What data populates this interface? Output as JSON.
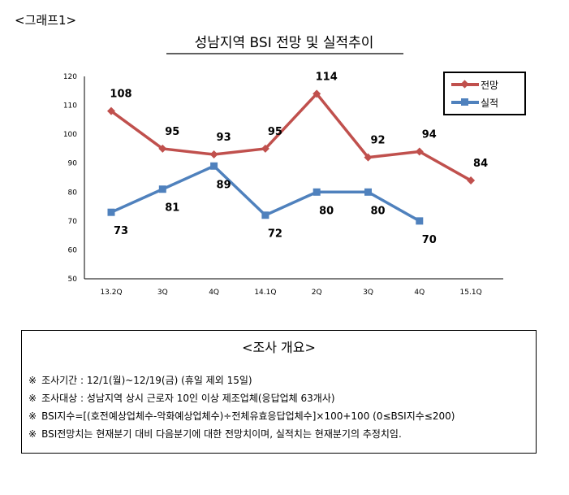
{
  "graph_label": "<그래프1>",
  "chart_data": {
    "type": "line",
    "title": "성남지역 BSI 전망 및 실적추이",
    "categories": [
      "13.2Q",
      "3Q",
      "4Q",
      "14.1Q",
      "2Q",
      "3Q",
      "4Q",
      "15.1Q"
    ],
    "ylim": [
      50,
      120
    ],
    "yticks": [
      50,
      60,
      70,
      80,
      90,
      100,
      110,
      120
    ],
    "grid": false,
    "legend_position": "top-right",
    "series": [
      {
        "name": "전망",
        "color": "#c0504d",
        "marker": "diamond",
        "values": [
          108,
          95,
          93,
          95,
          114,
          92,
          94,
          84
        ]
      },
      {
        "name": "실적",
        "color": "#4f81bd",
        "marker": "square",
        "values": [
          73,
          81,
          89,
          72,
          80,
          80,
          70,
          null
        ]
      }
    ]
  },
  "survey": {
    "title": "<조사 개요>",
    "lines": [
      {
        "mark": "※",
        "text": "조사기간 : 12/1(월)~12/19(금) (휴일 제외 15일)"
      },
      {
        "mark": "※",
        "text": "조사대상 : 성남지역 상시 근로자 10인 이상 제조업체(응답업체 63개사)"
      },
      {
        "mark": "※",
        "text": "BSI지수=[(호전예상업체수-악화예상업체수)÷전체유효응답업체수]×100+100 (0≤BSI지수≤200)"
      },
      {
        "mark": "※",
        "text": "BSI전망치는 현재분기 대비 다음분기에 대한 전망치이며, 실적치는 현재분기의 추정치임."
      }
    ]
  }
}
